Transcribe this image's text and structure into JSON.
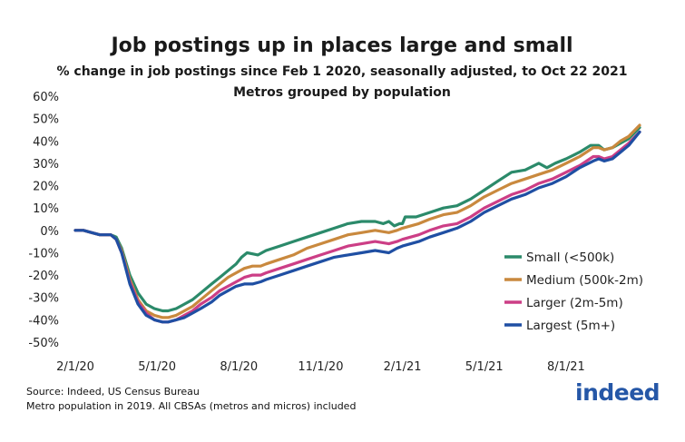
{
  "chart_data": {
    "type": "line",
    "title": "Job postings up in places large and small",
    "subtitle": "% change in job postings since Feb 1 2020, seasonally adjusted, to Oct 22 2021",
    "subtitle2": "Metros grouped by population",
    "xlabel": "",
    "ylabel": "",
    "ylim": [
      -50,
      60
    ],
    "yticks": [
      "60%",
      "50%",
      "40%",
      "30%",
      "20%",
      "10%",
      "0%",
      "-10%",
      "-20%",
      "-30%",
      "-40%",
      "-50%"
    ],
    "xticks": [
      "2/1/20",
      "5/1/20",
      "8/1/20",
      "11/1/20",
      "2/1/21",
      "5/1/21",
      "8/1/21"
    ],
    "xrange_months": [
      0,
      20.7
    ],
    "legend_position": "right",
    "series": [
      {
        "name": "Small (<500k)",
        "color": "#2b8a6a",
        "points": [
          [
            0,
            0
          ],
          [
            0.3,
            0
          ],
          [
            0.6,
            -1
          ],
          [
            0.9,
            -2
          ],
          [
            1.1,
            -2
          ],
          [
            1.3,
            -2
          ],
          [
            1.5,
            -3
          ],
          [
            1.7,
            -8
          ],
          [
            2.0,
            -20
          ],
          [
            2.3,
            -28
          ],
          [
            2.6,
            -33
          ],
          [
            2.9,
            -35
          ],
          [
            3.2,
            -36
          ],
          [
            3.4,
            -36
          ],
          [
            3.7,
            -35
          ],
          [
            4.0,
            -33
          ],
          [
            4.3,
            -31
          ],
          [
            4.6,
            -28
          ],
          [
            5.0,
            -24
          ],
          [
            5.3,
            -21
          ],
          [
            5.6,
            -18
          ],
          [
            5.9,
            -15
          ],
          [
            6.1,
            -12
          ],
          [
            6.3,
            -10
          ],
          [
            6.5,
            -10.5
          ],
          [
            6.7,
            -11
          ],
          [
            7.0,
            -9
          ],
          [
            7.5,
            -7
          ],
          [
            8.0,
            -5
          ],
          [
            8.5,
            -3
          ],
          [
            9.0,
            -1
          ],
          [
            9.5,
            1
          ],
          [
            10.0,
            3
          ],
          [
            10.5,
            4
          ],
          [
            11.0,
            4
          ],
          [
            11.3,
            3
          ],
          [
            11.5,
            4
          ],
          [
            11.7,
            2
          ],
          [
            11.9,
            3
          ],
          [
            12.0,
            3
          ],
          [
            12.1,
            6
          ],
          [
            12.3,
            6
          ],
          [
            12.5,
            6
          ],
          [
            13.0,
            8
          ],
          [
            13.5,
            10
          ],
          [
            14.0,
            11
          ],
          [
            14.5,
            14
          ],
          [
            15.0,
            18
          ],
          [
            15.5,
            22
          ],
          [
            16.0,
            26
          ],
          [
            16.5,
            27
          ],
          [
            17.0,
            30
          ],
          [
            17.3,
            28
          ],
          [
            17.6,
            30
          ],
          [
            18.0,
            32
          ],
          [
            18.5,
            35
          ],
          [
            18.9,
            38
          ],
          [
            19.2,
            38
          ],
          [
            19.4,
            36
          ],
          [
            19.7,
            37
          ],
          [
            20.0,
            39
          ],
          [
            20.3,
            41
          ],
          [
            20.7,
            46
          ]
        ]
      },
      {
        "name": "Medium (500k-2m)",
        "color": "#c9893e",
        "points": [
          [
            0,
            0
          ],
          [
            0.3,
            0
          ],
          [
            0.6,
            -1
          ],
          [
            0.9,
            -2
          ],
          [
            1.1,
            -2
          ],
          [
            1.3,
            -2
          ],
          [
            1.5,
            -4
          ],
          [
            1.7,
            -9
          ],
          [
            2.0,
            -22
          ],
          [
            2.3,
            -31
          ],
          [
            2.6,
            -36
          ],
          [
            2.9,
            -38
          ],
          [
            3.2,
            -39
          ],
          [
            3.4,
            -39
          ],
          [
            3.7,
            -38
          ],
          [
            4.0,
            -36
          ],
          [
            4.3,
            -34
          ],
          [
            4.6,
            -31
          ],
          [
            5.0,
            -27
          ],
          [
            5.3,
            -24
          ],
          [
            5.6,
            -21
          ],
          [
            5.9,
            -19
          ],
          [
            6.2,
            -17
          ],
          [
            6.5,
            -16
          ],
          [
            6.8,
            -16
          ],
          [
            7.0,
            -15
          ],
          [
            7.5,
            -13
          ],
          [
            8.0,
            -11
          ],
          [
            8.5,
            -8
          ],
          [
            9.0,
            -6
          ],
          [
            9.5,
            -4
          ],
          [
            10.0,
            -2
          ],
          [
            10.5,
            -1
          ],
          [
            11.0,
            0
          ],
          [
            11.5,
            -1
          ],
          [
            11.8,
            0
          ],
          [
            12.0,
            1
          ],
          [
            12.3,
            2
          ],
          [
            12.6,
            3
          ],
          [
            13.0,
            5
          ],
          [
            13.5,
            7
          ],
          [
            14.0,
            8
          ],
          [
            14.5,
            11
          ],
          [
            15.0,
            15
          ],
          [
            15.5,
            18
          ],
          [
            16.0,
            21
          ],
          [
            16.5,
            23
          ],
          [
            17.0,
            25
          ],
          [
            17.5,
            27
          ],
          [
            18.0,
            30
          ],
          [
            18.5,
            33
          ],
          [
            19.0,
            37
          ],
          [
            19.2,
            37
          ],
          [
            19.4,
            36
          ],
          [
            19.7,
            37
          ],
          [
            20.0,
            40
          ],
          [
            20.3,
            42
          ],
          [
            20.7,
            47
          ]
        ]
      },
      {
        "name": "Larger (2m-5m)",
        "color": "#cc3e86",
        "points": [
          [
            0,
            0
          ],
          [
            0.3,
            0
          ],
          [
            0.6,
            -1
          ],
          [
            0.9,
            -2
          ],
          [
            1.1,
            -2
          ],
          [
            1.3,
            -2
          ],
          [
            1.5,
            -4
          ],
          [
            1.7,
            -10
          ],
          [
            2.0,
            -23
          ],
          [
            2.3,
            -32
          ],
          [
            2.6,
            -37
          ],
          [
            2.9,
            -40
          ],
          [
            3.2,
            -41
          ],
          [
            3.4,
            -41
          ],
          [
            3.7,
            -40
          ],
          [
            4.0,
            -38
          ],
          [
            4.3,
            -36
          ],
          [
            4.6,
            -33
          ],
          [
            5.0,
            -30
          ],
          [
            5.3,
            -27
          ],
          [
            5.6,
            -25
          ],
          [
            5.9,
            -23
          ],
          [
            6.2,
            -21
          ],
          [
            6.5,
            -20
          ],
          [
            6.8,
            -20
          ],
          [
            7.0,
            -19
          ],
          [
            7.5,
            -17
          ],
          [
            8.0,
            -15
          ],
          [
            8.5,
            -13
          ],
          [
            9.0,
            -11
          ],
          [
            9.5,
            -9
          ],
          [
            10.0,
            -7
          ],
          [
            10.5,
            -6
          ],
          [
            11.0,
            -5
          ],
          [
            11.5,
            -6
          ],
          [
            11.8,
            -5
          ],
          [
            12.0,
            -4
          ],
          [
            12.3,
            -3
          ],
          [
            12.6,
            -2
          ],
          [
            13.0,
            0
          ],
          [
            13.5,
            2
          ],
          [
            14.0,
            3
          ],
          [
            14.5,
            6
          ],
          [
            15.0,
            10
          ],
          [
            15.5,
            13
          ],
          [
            16.0,
            16
          ],
          [
            16.5,
            18
          ],
          [
            17.0,
            21
          ],
          [
            17.5,
            23
          ],
          [
            18.0,
            26
          ],
          [
            18.5,
            29
          ],
          [
            19.0,
            33
          ],
          [
            19.2,
            33
          ],
          [
            19.4,
            32
          ],
          [
            19.7,
            33
          ],
          [
            20.0,
            36
          ],
          [
            20.3,
            39
          ],
          [
            20.7,
            44
          ]
        ]
      },
      {
        "name": "Largest (5m+)",
        "color": "#1f4fa3",
        "points": [
          [
            0,
            0
          ],
          [
            0.3,
            0
          ],
          [
            0.6,
            -1
          ],
          [
            0.9,
            -2
          ],
          [
            1.1,
            -2
          ],
          [
            1.3,
            -2
          ],
          [
            1.5,
            -4
          ],
          [
            1.7,
            -10
          ],
          [
            2.0,
            -24
          ],
          [
            2.3,
            -33
          ],
          [
            2.6,
            -38
          ],
          [
            2.9,
            -40
          ],
          [
            3.2,
            -41
          ],
          [
            3.4,
            -41
          ],
          [
            3.7,
            -40
          ],
          [
            4.0,
            -39
          ],
          [
            4.3,
            -37
          ],
          [
            4.6,
            -35
          ],
          [
            5.0,
            -32
          ],
          [
            5.3,
            -29
          ],
          [
            5.6,
            -27
          ],
          [
            5.9,
            -25
          ],
          [
            6.2,
            -24
          ],
          [
            6.5,
            -24
          ],
          [
            6.8,
            -23
          ],
          [
            7.0,
            -22
          ],
          [
            7.5,
            -20
          ],
          [
            8.0,
            -18
          ],
          [
            8.5,
            -16
          ],
          [
            9.0,
            -14
          ],
          [
            9.5,
            -12
          ],
          [
            10.0,
            -11
          ],
          [
            10.5,
            -10
          ],
          [
            11.0,
            -9
          ],
          [
            11.5,
            -10
          ],
          [
            11.8,
            -8
          ],
          [
            12.0,
            -7
          ],
          [
            12.3,
            -6
          ],
          [
            12.6,
            -5
          ],
          [
            13.0,
            -3
          ],
          [
            13.5,
            -1
          ],
          [
            14.0,
            1
          ],
          [
            14.5,
            4
          ],
          [
            15.0,
            8
          ],
          [
            15.5,
            11
          ],
          [
            16.0,
            14
          ],
          [
            16.5,
            16
          ],
          [
            17.0,
            19
          ],
          [
            17.5,
            21
          ],
          [
            18.0,
            24
          ],
          [
            18.5,
            28
          ],
          [
            19.0,
            31
          ],
          [
            19.2,
            32
          ],
          [
            19.4,
            31
          ],
          [
            19.7,
            32
          ],
          [
            20.0,
            35
          ],
          [
            20.3,
            38
          ],
          [
            20.7,
            44
          ]
        ]
      }
    ]
  },
  "footer": {
    "source": "Source: Indeed, US Census Bureau",
    "note": "Metro population in 2019. All CBSAs (metros and micros) included",
    "logo": "indeed"
  }
}
